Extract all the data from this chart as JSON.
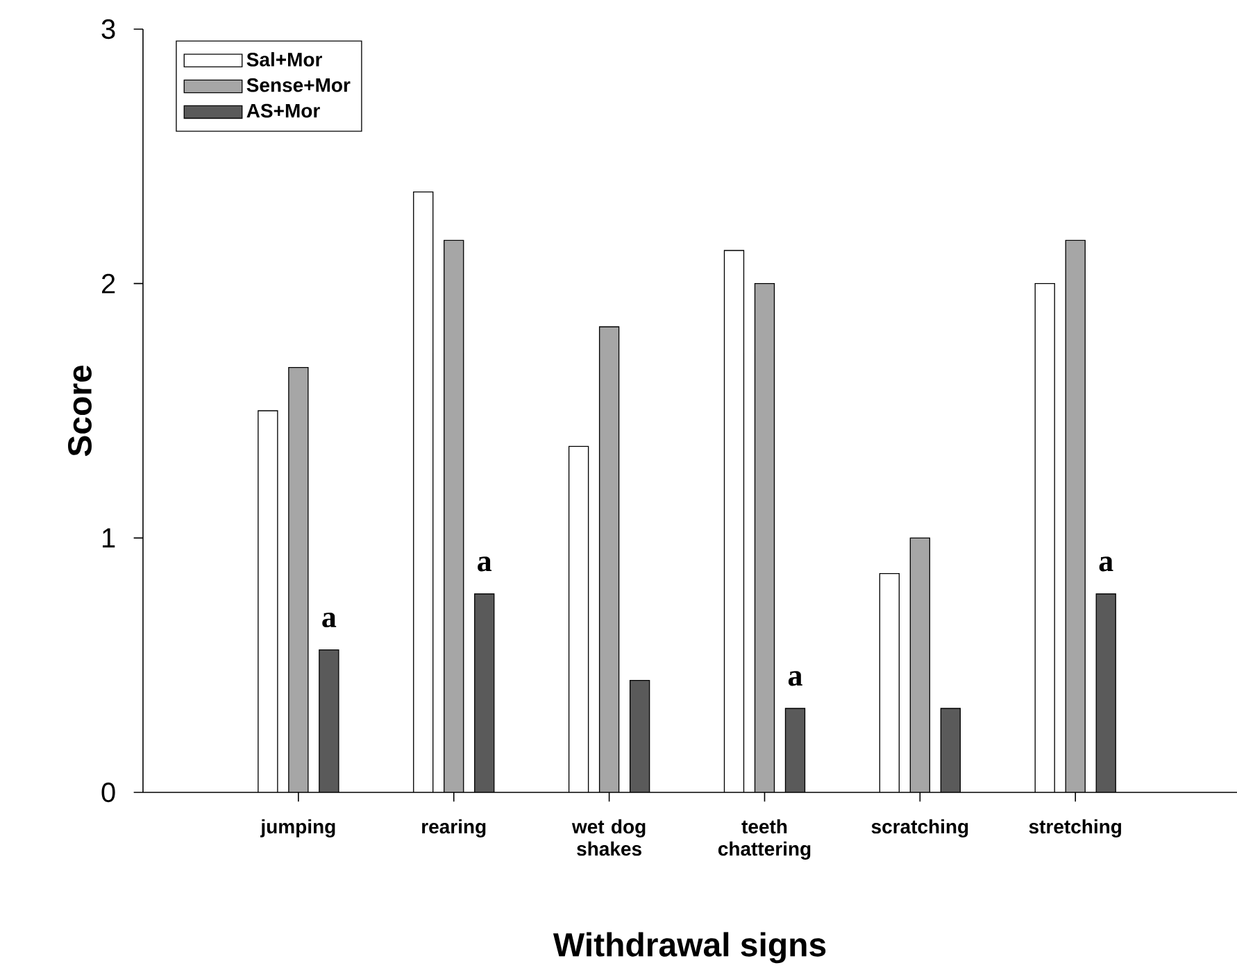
{
  "chart_data": {
    "type": "bar",
    "xlabel": "Withdrawal signs",
    "ylabel": "Score",
    "categories": [
      "jumping",
      "rearing",
      "wet dog shakes",
      "teeth chattering",
      "scratching",
      "stretching"
    ],
    "series": [
      {
        "name": "Sal+Mor",
        "color": "#ffffff",
        "values": [
          1.5,
          2.36,
          1.36,
          2.13,
          0.86,
          2.0
        ]
      },
      {
        "name": "Sense+Mor",
        "color": "#a6a6a6",
        "values": [
          1.67,
          2.17,
          1.83,
          2.0,
          1.0,
          2.17
        ]
      },
      {
        "name": "AS+Mor",
        "color": "#5a5a5a",
        "values": [
          0.56,
          0.78,
          0.44,
          0.33,
          0.33,
          0.78
        ],
        "value_labels": [
          "a",
          "a",
          null,
          "a",
          null,
          "a"
        ]
      }
    ],
    "ylim": [
      0,
      3
    ],
    "yticks": [
      0,
      1,
      2,
      3
    ],
    "grid": false,
    "legend": "top left"
  }
}
